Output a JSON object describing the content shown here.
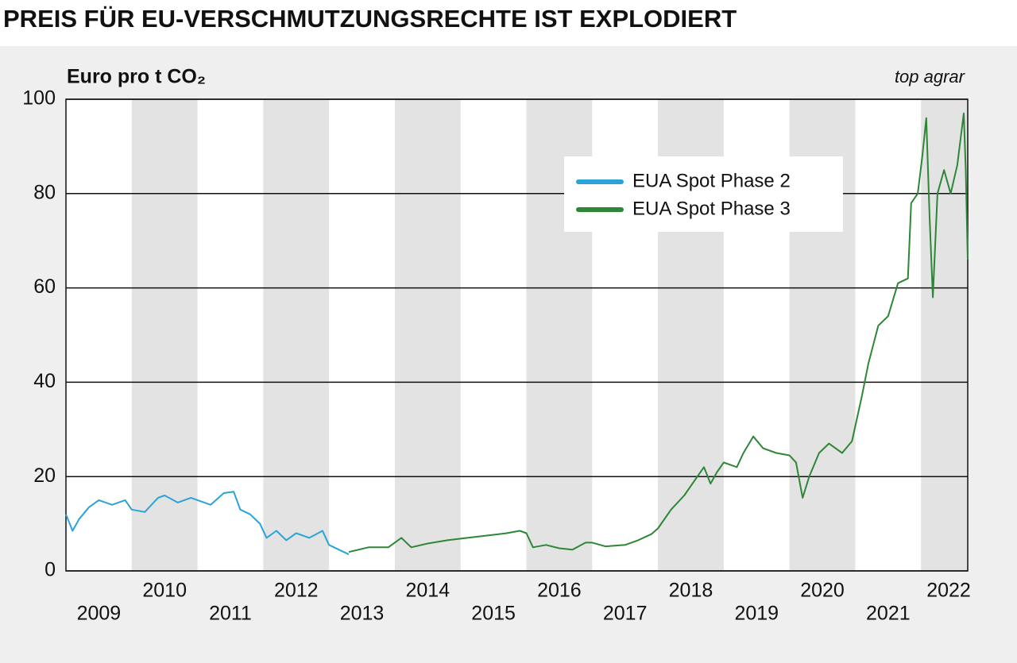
{
  "chart_data": {
    "type": "line",
    "title": "PREIS FÜR EU-VERSCHMUTZUNGSRECHTE IST EXPLODIERT",
    "y_label": "Euro pro t CO₂",
    "source": "top agrar",
    "xlim": [
      2009,
      2022.71
    ],
    "xticks": [
      2009,
      2010,
      2011,
      2012,
      2013,
      2014,
      2015,
      2016,
      2017,
      2018,
      2019,
      2020,
      2021,
      2022
    ],
    "ylim": [
      0,
      100
    ],
    "yticks": [
      0,
      20,
      40,
      60,
      80,
      100
    ],
    "grid": true,
    "year_bands": true,
    "legend": "top-right",
    "series": [
      {
        "name": "EUA Spot Phase 2",
        "color": "#2ba3d8",
        "x": [
          2009.0,
          2009.1,
          2009.2,
          2009.35,
          2009.5,
          2009.7,
          2009.9,
          2010.0,
          2010.2,
          2010.4,
          2010.5,
          2010.7,
          2010.9,
          2011.2,
          2011.4,
          2011.55,
          2011.65,
          2011.8,
          2011.95,
          2012.05,
          2012.2,
          2012.35,
          2012.5,
          2012.7,
          2012.9,
          2013.0,
          2013.15,
          2013.3
        ],
        "values": [
          12,
          8.5,
          11,
          13.5,
          15,
          14,
          15,
          13,
          12.5,
          15.5,
          16,
          14.5,
          15.5,
          14,
          16.5,
          16.8,
          13,
          12,
          10,
          7,
          8.5,
          6.5,
          8,
          7,
          8.5,
          5.5,
          4.5,
          3.5
        ]
      },
      {
        "name": "EUA Spot Phase 3",
        "color": "#2e8637",
        "x": [
          2013.3,
          2013.6,
          2013.9,
          2014.1,
          2014.25,
          2014.5,
          2014.8,
          2015.1,
          2015.4,
          2015.7,
          2015.9,
          2016.0,
          2016.1,
          2016.3,
          2016.5,
          2016.7,
          2016.9,
          2017.0,
          2017.2,
          2017.5,
          2017.7,
          2017.9,
          2018.0,
          2018.2,
          2018.4,
          2018.6,
          2018.7,
          2018.8,
          2018.9,
          2019.0,
          2019.2,
          2019.3,
          2019.45,
          2019.6,
          2019.8,
          2020.0,
          2020.1,
          2020.2,
          2020.3,
          2020.45,
          2020.6,
          2020.8,
          2020.95,
          2021.1,
          2021.2,
          2021.35,
          2021.5,
          2021.65,
          2021.8,
          2021.85,
          2021.95,
          2022.02,
          2022.08,
          2022.13,
          2022.18,
          2022.25,
          2022.35,
          2022.45,
          2022.55,
          2022.65,
          2022.68,
          2022.71
        ],
        "values": [
          4,
          5,
          5,
          7,
          5,
          5.8,
          6.5,
          7,
          7.5,
          8,
          8.5,
          8,
          5,
          5.5,
          4.8,
          4.5,
          6,
          6,
          5.2,
          5.5,
          6.5,
          7.8,
          9,
          13,
          16,
          20,
          22,
          18.5,
          21,
          23,
          22,
          25,
          28.5,
          26,
          25,
          24.5,
          23,
          15.5,
          20,
          25,
          27,
          25,
          27.5,
          37,
          44,
          52,
          54,
          61,
          62,
          78,
          80,
          88,
          96,
          75,
          58,
          80,
          85,
          80,
          86,
          97,
          85,
          66
        ]
      }
    ]
  }
}
